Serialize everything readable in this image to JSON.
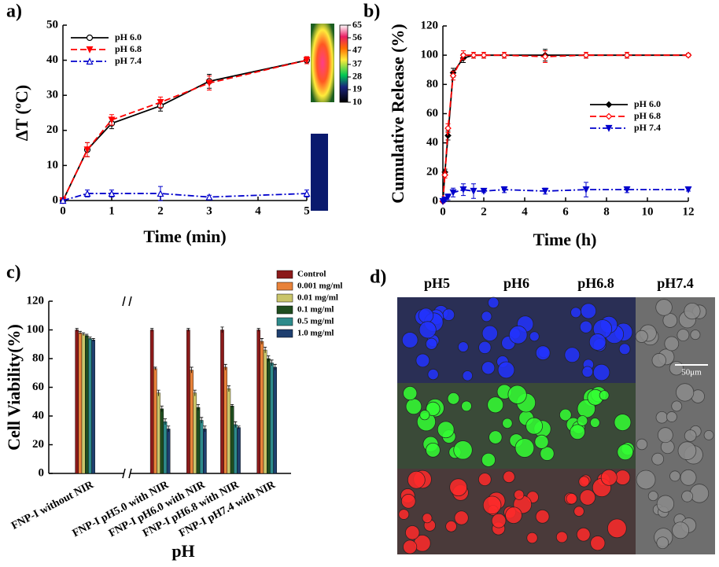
{
  "chart_data": [
    {
      "type": "line",
      "label": "a)",
      "x_label": "Time (min)",
      "y_label": "ΔT (ºC)",
      "x": [
        0,
        0.5,
        1,
        2,
        3,
        5
      ],
      "xlim": [
        0,
        5
      ],
      "xticks": [
        0,
        1,
        2,
        3,
        4,
        5
      ],
      "ylim": [
        0,
        50
      ],
      "yticks": [
        0,
        10,
        20,
        30,
        40,
        50
      ],
      "legend": "upper left",
      "series": [
        {
          "name": "pH 6.0",
          "color": "#000000",
          "dash": "solid",
          "marker": "circle-open",
          "values": [
            0,
            14.5,
            22,
            27,
            34,
            40
          ],
          "errors": [
            0,
            2,
            1.5,
            1.5,
            2,
            1
          ]
        },
        {
          "name": "pH 6.8",
          "color": "#ff0000",
          "dash": "dashed",
          "marker": "triangle-down-filled",
          "values": [
            0,
            14.5,
            23,
            28,
            33.5,
            40
          ],
          "errors": [
            0,
            2,
            1.5,
            1.5,
            2,
            1
          ]
        },
        {
          "name": "pH 7.4",
          "color": "#0000cc",
          "dash": "dashdot",
          "marker": "triangle-up-open",
          "values": [
            0,
            2,
            2,
            2,
            1,
            2
          ],
          "errors": [
            0,
            1,
            1,
            2,
            0.5,
            1
          ]
        }
      ],
      "colorbar": {
        "lim": [
          10,
          65
        ],
        "ticks": [
          10,
          19,
          28,
          37,
          47,
          56,
          65
        ]
      }
    },
    {
      "type": "line",
      "label": "b)",
      "x_label": "Time (h)",
      "y_label": "Cumulative Release (%)",
      "x": [
        0,
        0.1,
        0.25,
        0.5,
        1,
        1.5,
        2,
        3,
        5,
        7,
        9,
        12
      ],
      "xlim": [
        0,
        12
      ],
      "xticks": [
        0,
        2,
        4,
        6,
        8,
        10,
        12
      ],
      "ylim": [
        0,
        120
      ],
      "yticks": [
        0,
        20,
        40,
        60,
        80,
        100,
        120
      ],
      "legend": "center right",
      "series": [
        {
          "name": "pH 6.0",
          "color": "#000000",
          "dash": "solid",
          "marker": "diamond-filled",
          "values": [
            0,
            20,
            45,
            88,
            98,
            100,
            100,
            100,
            100,
            100,
            100,
            100
          ],
          "errors": [
            0,
            2,
            3,
            3,
            3,
            2,
            2,
            2,
            4,
            2,
            2,
            1
          ]
        },
        {
          "name": "pH 6.8",
          "color": "#ff0000",
          "dash": "dashed",
          "marker": "diamond-open",
          "values": [
            0,
            18,
            50,
            86,
            100,
            100,
            100,
            100,
            99,
            100,
            100,
            100
          ],
          "errors": [
            0,
            2,
            3,
            3,
            3,
            2,
            2,
            2,
            4,
            2,
            2,
            1
          ]
        },
        {
          "name": "pH 7.4",
          "color": "#0000cc",
          "dash": "dashdot",
          "marker": "triangle-down-filled",
          "values": [
            0,
            1,
            3,
            6,
            8,
            7,
            7,
            8,
            7,
            8,
            8,
            8
          ],
          "errors": [
            0,
            1,
            2,
            3,
            4,
            5,
            1,
            2,
            2,
            5,
            2,
            1
          ]
        }
      ]
    },
    {
      "type": "bar",
      "label": "c)",
      "x_label": "pH",
      "y_label": "Cell Viability(%)",
      "categories": [
        "FNP-I without NIR",
        "FNP-I pH5.0 with NIR",
        "FNP-I pH6.0 with NIR",
        "FNP-I pH6.8 with NIR",
        "FNP-I pH7.4 with NIR"
      ],
      "ylim": [
        0,
        120
      ],
      "yticks": [
        0,
        20,
        40,
        60,
        80,
        100,
        120
      ],
      "legend": "outside upper right",
      "series": [
        {
          "name": "Control",
          "color": "#8b1a1a",
          "values": [
            100,
            100,
            100,
            100,
            100
          ],
          "errors": [
            1,
            1,
            1,
            2,
            1
          ]
        },
        {
          "name": "0.001 mg/ml",
          "color": "#e8823a",
          "values": [
            98,
            73,
            72,
            74,
            92
          ],
          "errors": [
            1,
            1,
            2,
            2,
            2
          ]
        },
        {
          "name": "0.01 mg/ml",
          "color": "#c9c56a",
          "values": [
            97,
            56,
            56,
            59,
            86
          ],
          "errors": [
            1,
            2,
            2,
            2,
            2
          ]
        },
        {
          "name": "0.1 mg/ml",
          "color": "#1f4d1f",
          "values": [
            96,
            45,
            46,
            47,
            80
          ],
          "errors": [
            1,
            2,
            2,
            1,
            2
          ]
        },
        {
          "name": "0.5 mg/ml",
          "color": "#2e8b8b",
          "values": [
            94,
            36,
            37,
            34,
            77
          ],
          "errors": [
            1,
            2,
            2,
            2,
            2
          ]
        },
        {
          "name": "1.0 mg/ml",
          "color": "#1f3f6f",
          "values": [
            93,
            31,
            31,
            32,
            74
          ],
          "errors": [
            1,
            2,
            2,
            1,
            2
          ]
        }
      ]
    }
  ],
  "image_panel": {
    "label": "d)",
    "columns": [
      "pH5",
      "pH6",
      "pH6.8",
      "pH7.4"
    ],
    "scale_bar": "50μm"
  }
}
